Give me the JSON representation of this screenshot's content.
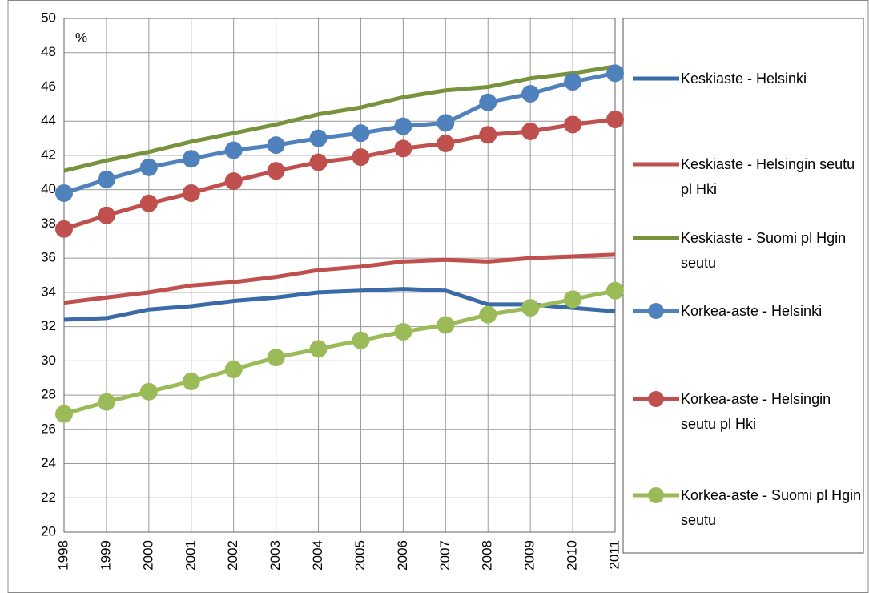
{
  "chart_data": {
    "type": "line",
    "annotation": "%",
    "categories": [
      "1998",
      "1999",
      "2000",
      "2001",
      "2002",
      "2003",
      "2004",
      "2005",
      "2006",
      "2007",
      "2008",
      "2009",
      "2010",
      "2011"
    ],
    "ylim": [
      20,
      50
    ],
    "yticks": [
      20,
      22,
      24,
      26,
      28,
      30,
      32,
      34,
      36,
      38,
      40,
      42,
      44,
      46,
      48,
      50
    ],
    "grid": true,
    "legend": "right",
    "series": [
      {
        "name": "Keskiaste - Helsinki",
        "color": "#3a6aa8",
        "marker": false,
        "values": [
          32.4,
          32.5,
          33.0,
          33.2,
          33.5,
          33.7,
          34.0,
          34.1,
          34.2,
          34.1,
          33.3,
          33.3,
          33.1,
          32.9
        ]
      },
      {
        "name": "Keskiaste - Helsingin seutu pl Hki",
        "color": "#c0504d",
        "marker": false,
        "values": [
          33.4,
          33.7,
          34.0,
          34.4,
          34.6,
          34.9,
          35.3,
          35.5,
          35.8,
          35.9,
          35.8,
          36.0,
          36.1,
          36.2
        ]
      },
      {
        "name": "Keskiaste - Suomi pl Hgin seutu",
        "color": "#77933c",
        "marker": false,
        "values": [
          41.1,
          41.7,
          42.2,
          42.8,
          43.3,
          43.8,
          44.4,
          44.8,
          45.4,
          45.8,
          46.0,
          46.5,
          46.8,
          47.2
        ]
      },
      {
        "name": "Korkea-aste - Helsinki",
        "color": "#4f81bd",
        "marker": true,
        "values": [
          39.8,
          40.6,
          41.3,
          41.8,
          42.3,
          42.6,
          43.0,
          43.3,
          43.7,
          43.9,
          45.1,
          45.6,
          46.3,
          46.8
        ]
      },
      {
        "name": "Korkea-aste - Helsingin seutu pl Hki",
        "color": "#c0504d",
        "marker": true,
        "values": [
          37.7,
          38.5,
          39.2,
          39.8,
          40.5,
          41.1,
          41.6,
          41.9,
          42.4,
          42.7,
          43.2,
          43.4,
          43.8,
          44.1
        ]
      },
      {
        "name": "Korkea-aste - Suomi pl Hgin seutu",
        "color": "#9bbb59",
        "marker": true,
        "values": [
          26.9,
          27.6,
          28.2,
          28.8,
          29.5,
          30.2,
          30.7,
          31.2,
          31.7,
          32.1,
          32.7,
          33.1,
          33.6,
          34.1
        ]
      }
    ]
  }
}
